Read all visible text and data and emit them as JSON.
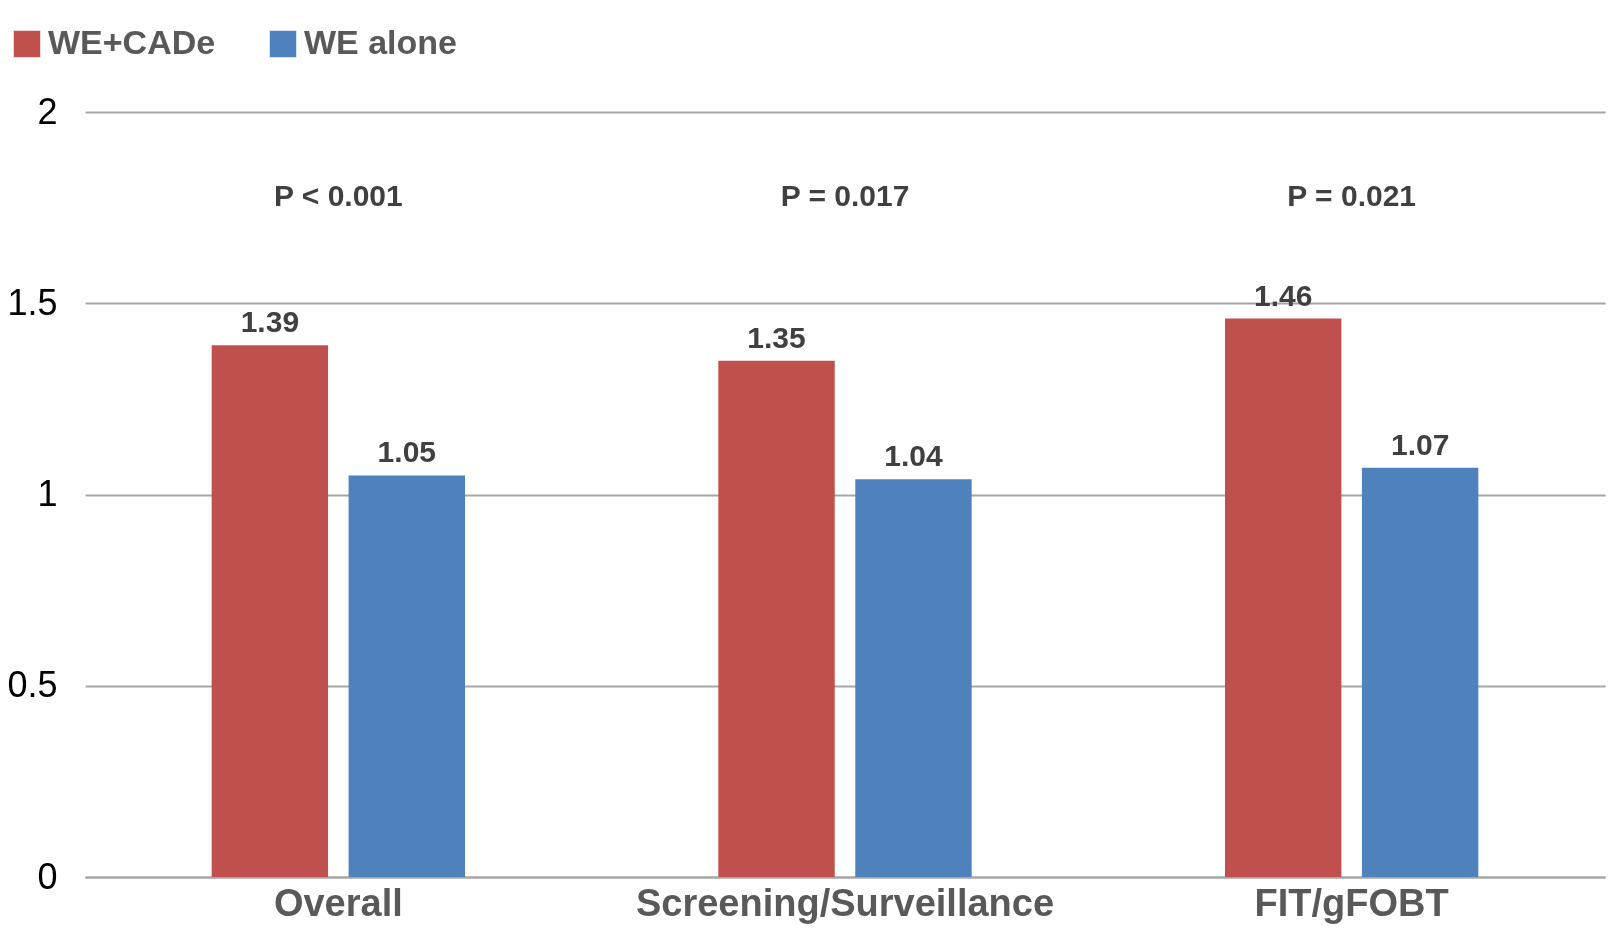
{
  "chart_data": {
    "type": "bar",
    "categories": [
      "Overall",
      "Screening/Surveillance",
      "FIT/gFOBT"
    ],
    "series": [
      {
        "name": "WE+CADe",
        "color": "#c0504d",
        "values": [
          1.39,
          1.35,
          1.46
        ]
      },
      {
        "name": "WE alone",
        "color": "#4f81bd",
        "values": [
          1.05,
          1.04,
          1.07
        ]
      }
    ],
    "ylim": [
      0,
      2
    ],
    "yticks": [
      0,
      0.5,
      1,
      1.5,
      2
    ],
    "grid": "y",
    "legend": "top left",
    "data_labels": true,
    "annotations": [
      "P < 0.001",
      "P = 0.017",
      "P = 0.021"
    ]
  }
}
